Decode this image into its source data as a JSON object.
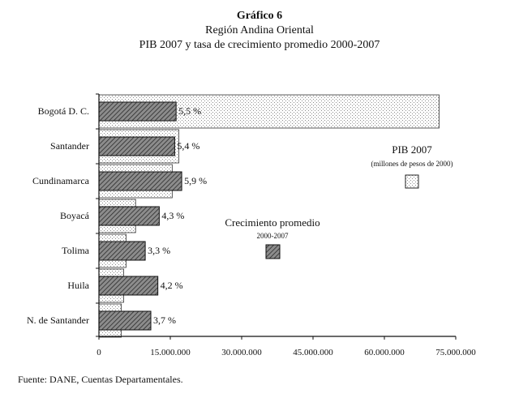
{
  "chart_data": {
    "type": "bar",
    "orientation": "horizontal",
    "title": "Gráfico 6",
    "subtitle": "Región Andina Oriental",
    "subtitle2": "PIB 2007 y tasa de crecimiento promedio 2000-2007",
    "categories": [
      "Bogotá D. C.",
      "Santander",
      "Cundinamarca",
      "Boyacá",
      "Tolima",
      "Huila",
      "N. de Santander"
    ],
    "series": [
      {
        "name": "PIB 2007",
        "legend_note": "(millones de pesos de 2000)",
        "values": [
          71500000,
          16800000,
          15400000,
          7700000,
          5700000,
          5200000,
          4700000
        ]
      },
      {
        "name": "Crecimiento promedio",
        "legend_note": "2000-2007",
        "values": [
          5.5,
          5.4,
          5.9,
          4.3,
          3.3,
          4.2,
          3.7
        ],
        "labels": [
          "5,5 %",
          "5,4 %",
          "5,9 %",
          "4,3 %",
          "3,3 %",
          "4,2 %",
          "3,7 %"
        ]
      }
    ],
    "xlim": [
      0,
      75000000
    ],
    "xticks": [
      0,
      15000000,
      30000000,
      45000000,
      60000000,
      75000000
    ],
    "xtick_labels": [
      "0",
      "15.000.000",
      "30.000.000",
      "45.000.000",
      "60.000.000",
      "75.000.000"
    ],
    "grid": false,
    "legend_placement": "right",
    "source": "Fuente: DANE, Cuentas Departamentales."
  }
}
